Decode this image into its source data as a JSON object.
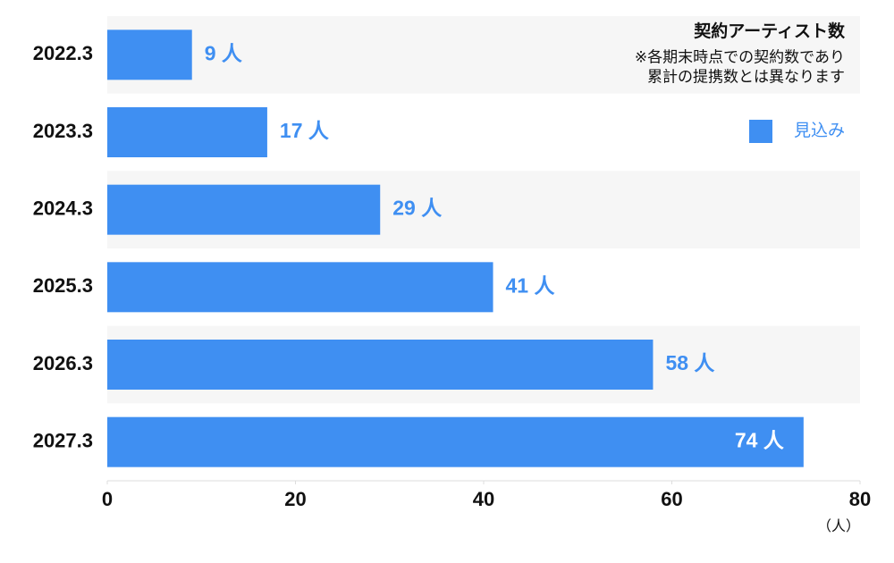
{
  "chart_data": {
    "type": "bar",
    "orientation": "horizontal",
    "title": "契約アーティスト数",
    "subtitle": [
      "※各期末時点での契約数であり",
      "累計の提携数とは異なります"
    ],
    "categories": [
      "2022.3",
      "2023.3",
      "2024.3",
      "2025.3",
      "2026.3",
      "2027.3"
    ],
    "series": [
      {
        "name": "見込み",
        "color": "#3f8ff2",
        "values": [
          9,
          17,
          29,
          41,
          58,
          74
        ],
        "value_labels": [
          "9 人",
          "17 人",
          "29 人",
          "41 人",
          "58 人",
          "74 人"
        ]
      }
    ],
    "xlim": [
      0,
      80
    ],
    "xticks": [
      0,
      20,
      40,
      60,
      80
    ],
    "x_unit_label": "（人）",
    "row_bands": true,
    "legend_position": "upper right"
  }
}
